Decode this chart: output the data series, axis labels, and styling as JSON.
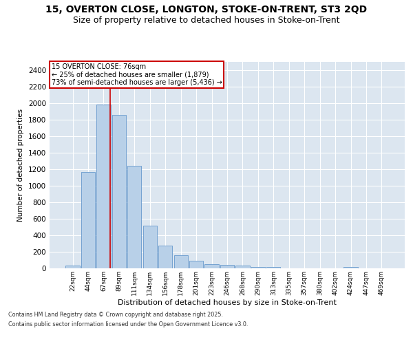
{
  "title_line1": "15, OVERTON CLOSE, LONGTON, STOKE-ON-TRENT, ST3 2QD",
  "title_line2": "Size of property relative to detached houses in Stoke-on-Trent",
  "xlabel": "Distribution of detached houses by size in Stoke-on-Trent",
  "ylabel": "Number of detached properties",
  "categories": [
    "22sqm",
    "44sqm",
    "67sqm",
    "89sqm",
    "111sqm",
    "134sqm",
    "156sqm",
    "178sqm",
    "201sqm",
    "223sqm",
    "246sqm",
    "268sqm",
    "290sqm",
    "313sqm",
    "335sqm",
    "357sqm",
    "380sqm",
    "402sqm",
    "424sqm",
    "447sqm",
    "469sqm"
  ],
  "values": [
    30,
    1170,
    1980,
    1855,
    1240,
    515,
    275,
    155,
    90,
    50,
    45,
    30,
    20,
    15,
    0,
    0,
    0,
    0,
    15,
    0,
    0
  ],
  "bar_color": "#b8d0e8",
  "bar_edge_color": "#6699cc",
  "bg_color": "#dce6f0",
  "grid_color": "#ffffff",
  "annotation_line1": "15 OVERTON CLOSE: 76sqm",
  "annotation_line2": "← 25% of detached houses are smaller (1,879)",
  "annotation_line3": "73% of semi-detached houses are larger (5,436) →",
  "annotation_box_color": "#cc0000",
  "vline_color": "#cc0000",
  "vline_pos": 2.43,
  "ylim": [
    0,
    2500
  ],
  "yticks": [
    0,
    200,
    400,
    600,
    800,
    1000,
    1200,
    1400,
    1600,
    1800,
    2000,
    2200,
    2400
  ],
  "footnote_line1": "Contains HM Land Registry data © Crown copyright and database right 2025.",
  "footnote_line2": "Contains public sector information licensed under the Open Government Licence v3.0.",
  "title_fontsize": 10,
  "subtitle_fontsize": 9
}
